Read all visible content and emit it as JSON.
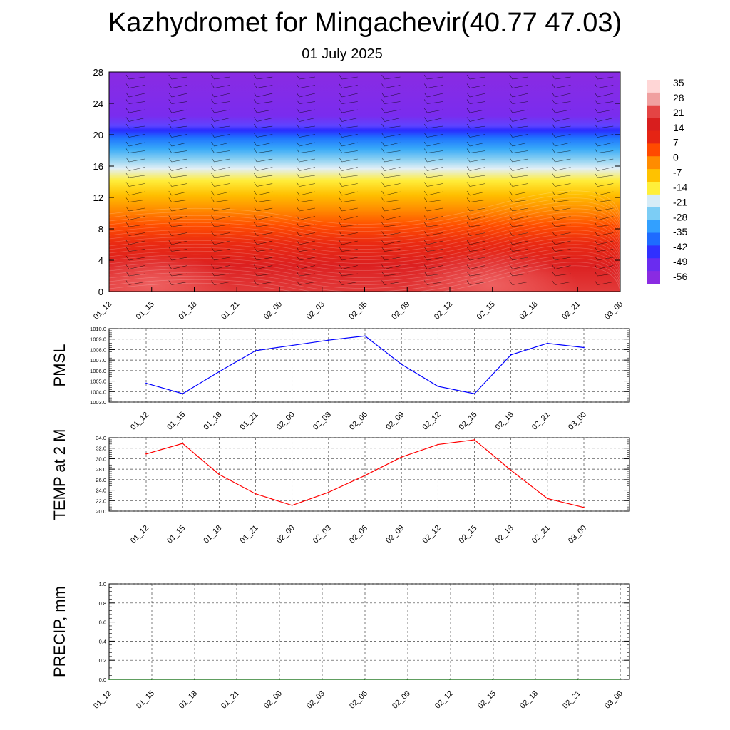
{
  "header": {
    "title": "Kazhydromet for Mingachevir(40.77 47.03)",
    "date": "01 July 2025"
  },
  "colors": {
    "pmsl_line": "#0000ff",
    "temp_line": "#ff0000",
    "precip_line": "#006400",
    "colorbar": [
      "#8a2be2",
      "#6a2cf0",
      "#3030ff",
      "#1e6bff",
      "#32a0ff",
      "#7ccdf5",
      "#d6ecf7",
      "#ffef3a",
      "#ffc200",
      "#ff8c00",
      "#ff4a00",
      "#e52414",
      "#d81e1e",
      "#e44444",
      "#f0a0a0",
      "#ffd6d6"
    ]
  },
  "chart_data": [
    {
      "type": "heatmap",
      "title": "",
      "ylim": [
        0,
        28
      ],
      "yticks": [
        "0",
        "4",
        "8",
        "12",
        "16",
        "20",
        "24",
        "28"
      ],
      "x": [
        "01_12",
        "01_15",
        "01_18",
        "01_21",
        "02_00",
        "02_03",
        "02_06",
        "02_09",
        "02_12",
        "02_15",
        "02_18",
        "02_21",
        "03_00"
      ],
      "colorbar_labels": [
        "35",
        "28",
        "21",
        "14",
        "7",
        "0",
        "-7",
        "-14",
        "-21",
        "-28",
        "-35",
        "-42",
        "-49",
        "-56"
      ]
    },
    {
      "type": "line",
      "ylabel": "PMSL",
      "ylim": [
        1003.0,
        1010.0
      ],
      "yticks": [
        "1003.0",
        "1004.0",
        "1005.0",
        "1006.0",
        "1007.0",
        "1008.0",
        "1009.0",
        "1010.0"
      ],
      "x": [
        "01_12",
        "01_15",
        "01_18",
        "01_21",
        "02_00",
        "02_03",
        "02_06",
        "02_09",
        "02_12",
        "02_15",
        "02_18",
        "02_21",
        "03_00"
      ],
      "values": [
        1004.8,
        1003.8,
        1005.9,
        1007.9,
        1008.4,
        1008.9,
        1009.3,
        1006.6,
        1004.5,
        1003.8,
        1007.5,
        1008.6,
        1008.2
      ]
    },
    {
      "type": "line",
      "ylabel": "TEMP at 2 M",
      "ylim": [
        20.0,
        34.0
      ],
      "yticks": [
        "20.0",
        "22.0",
        "24.0",
        "26.0",
        "28.0",
        "30.0",
        "32.0",
        "34.0"
      ],
      "x": [
        "01_12",
        "01_15",
        "01_18",
        "01_21",
        "02_00",
        "02_03",
        "02_06",
        "02_09",
        "02_12",
        "02_15",
        "02_18",
        "02_21",
        "03_00"
      ],
      "values": [
        30.9,
        32.9,
        27.0,
        23.3,
        21.1,
        23.6,
        26.8,
        30.3,
        32.7,
        33.6,
        27.8,
        22.4,
        20.7
      ]
    },
    {
      "type": "line",
      "ylabel": "PRECIP, mm",
      "ylim": [
        0.0,
        1.0
      ],
      "yticks": [
        "0.0",
        "0.2",
        "0.4",
        "0.6",
        "0.8",
        "1.0"
      ],
      "x": [
        "01_12",
        "01_15",
        "01_18",
        "01_21",
        "02_00",
        "02_03",
        "02_06",
        "02_09",
        "02_12",
        "02_15",
        "02_18",
        "02_21",
        "03_00"
      ],
      "values": [
        0,
        0,
        0,
        0,
        0,
        0,
        0,
        0,
        0,
        0,
        0,
        0,
        0
      ]
    }
  ]
}
